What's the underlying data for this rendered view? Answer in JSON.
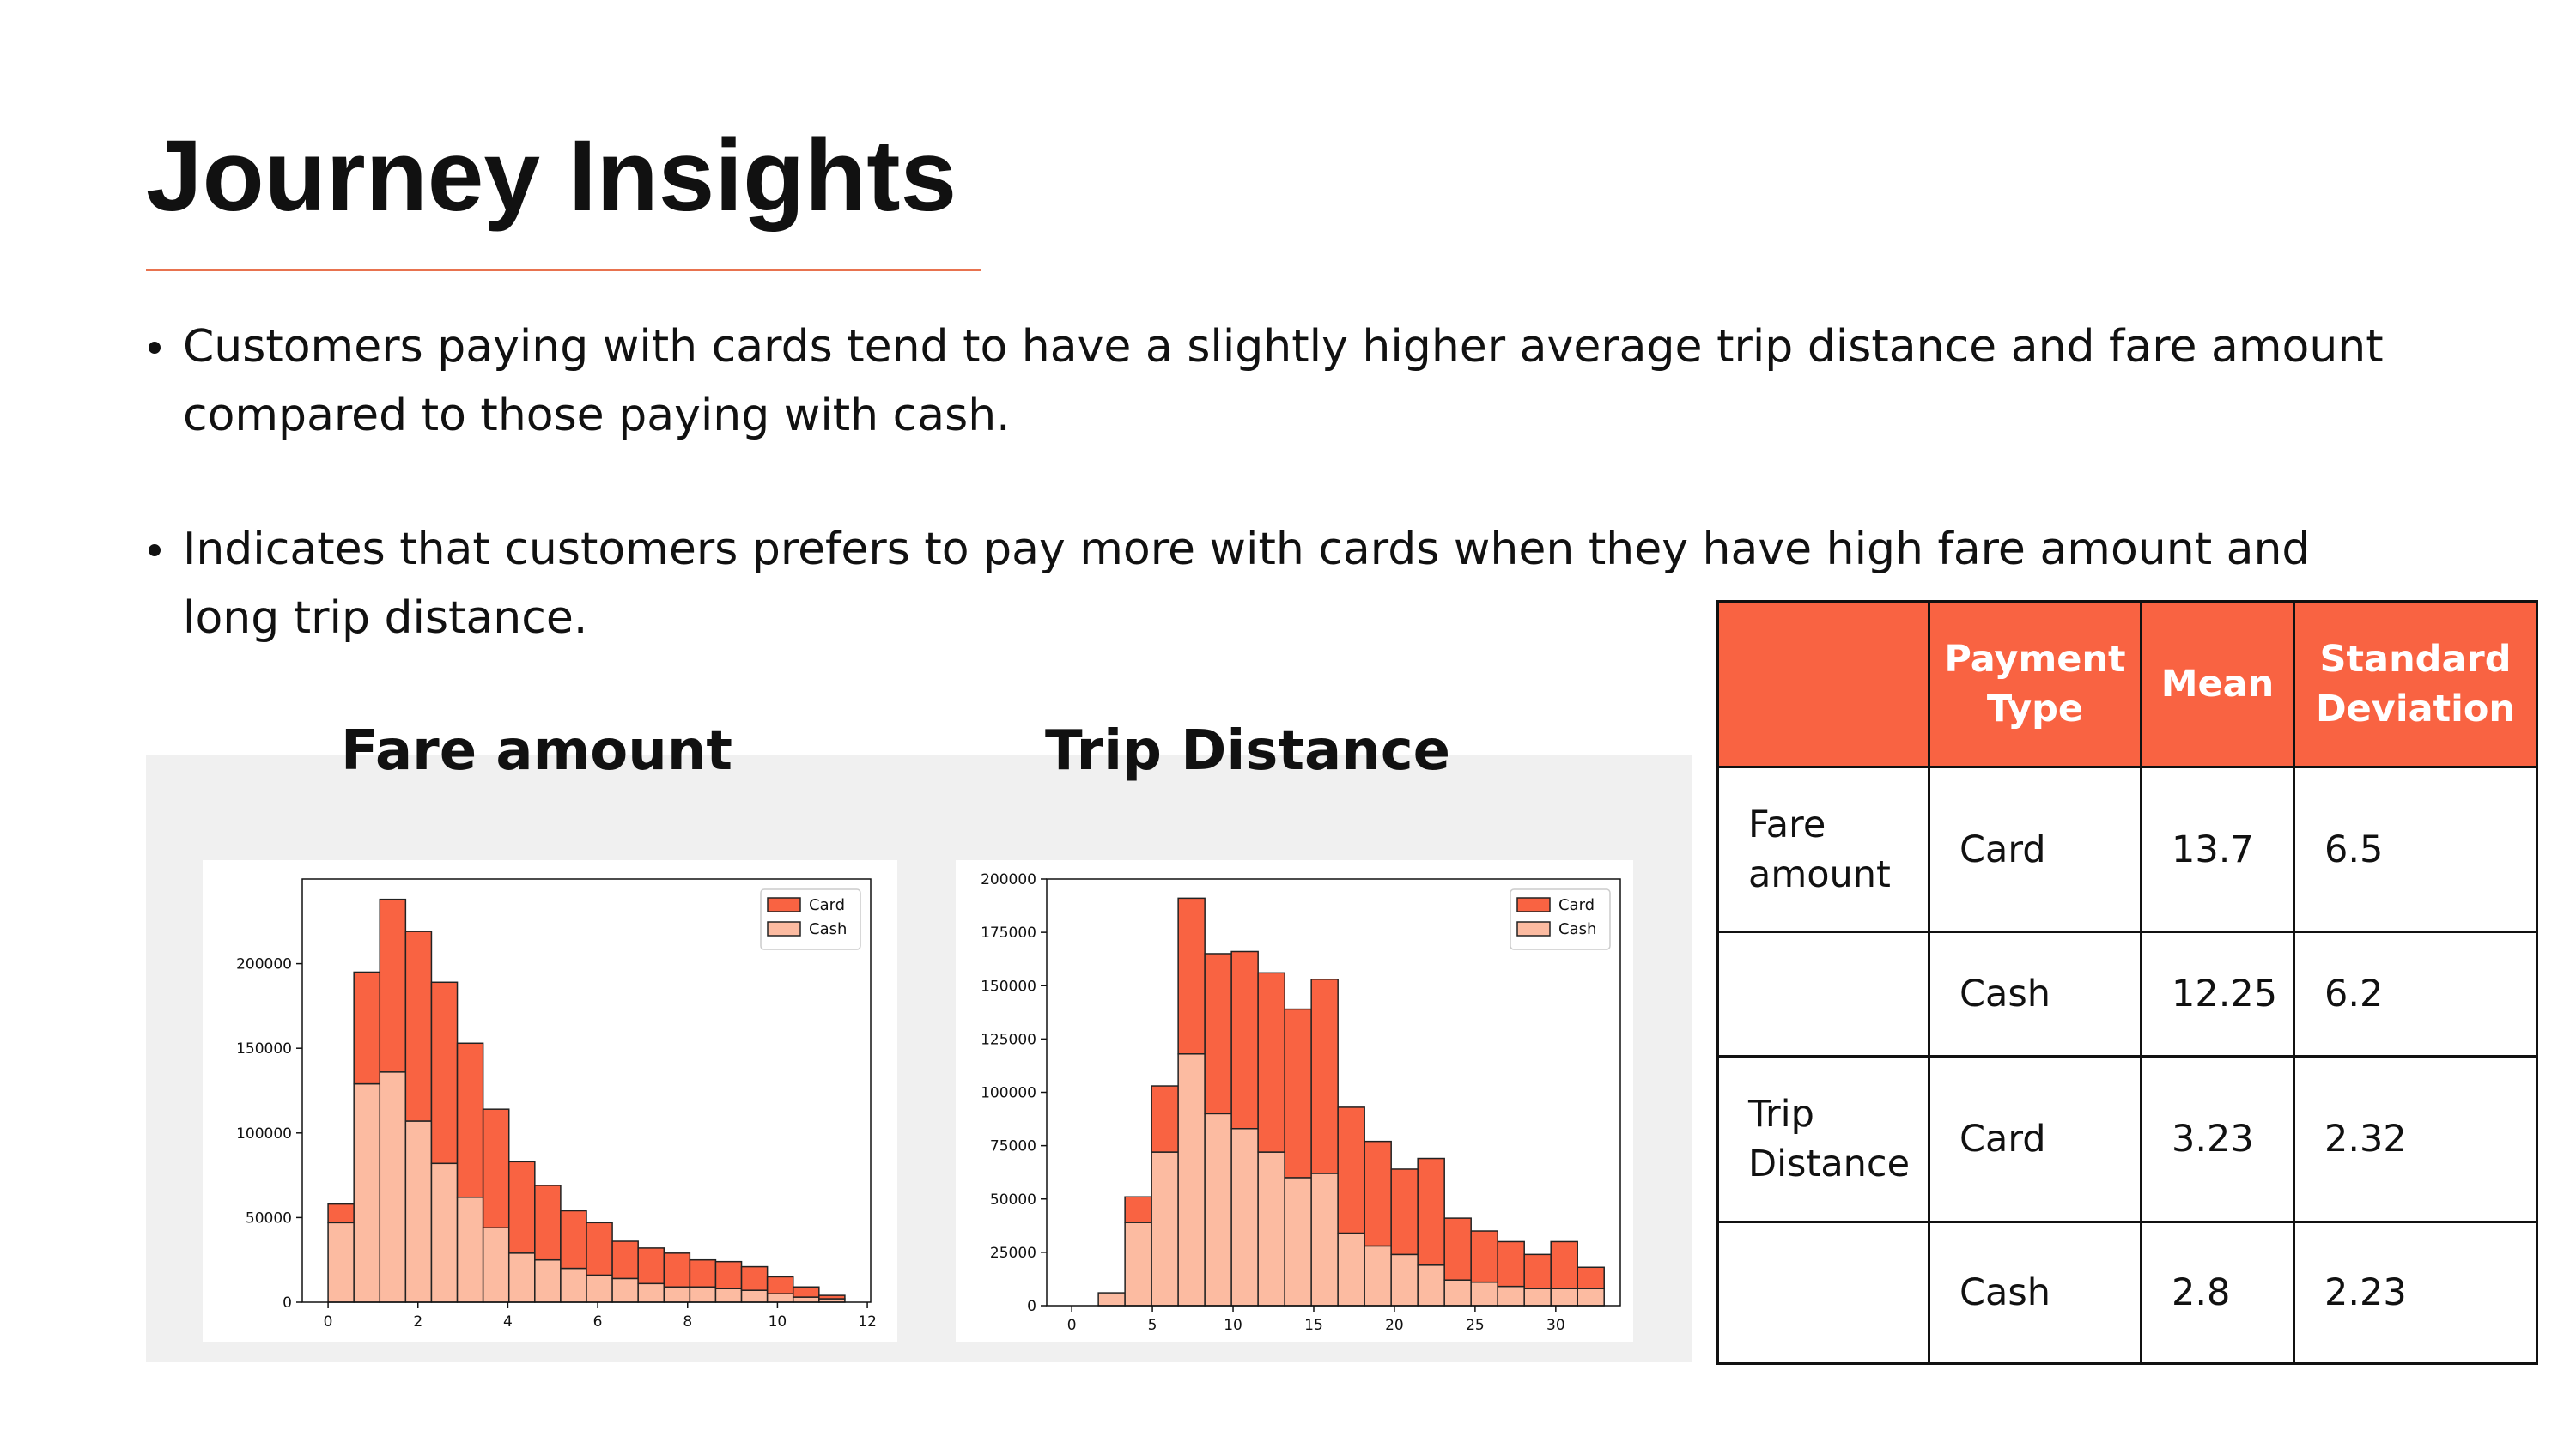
{
  "header": {
    "title": "Journey Insights"
  },
  "bullets": [
    "Customers paying with cards tend to have a slightly higher average trip distance and fare amount compared to those paying with cash.",
    "Indicates that customers prefers to pay more with cards when they have high fare amount and long trip distance."
  ],
  "chart_data": [
    {
      "type": "histogram",
      "title": "Fare amount",
      "stacked": true,
      "legend": "upper right",
      "bins": [
        0,
        0.575,
        1.15,
        1.725,
        2.3,
        2.875,
        3.45,
        4.025,
        4.6,
        5.175,
        5.75,
        6.325,
        6.9,
        7.475,
        8.05,
        8.625,
        9.2,
        9.775,
        10.35,
        10.925,
        11.5
      ],
      "series": [
        {
          "name": "Card",
          "color": "#f96342",
          "values": [
            11000,
            66000,
            102000,
            112000,
            107000,
            91000,
            70000,
            54000,
            44000,
            34000,
            31000,
            22000,
            21000,
            20000,
            16000,
            16000,
            14000,
            10000,
            6000,
            2000
          ]
        },
        {
          "name": "Cash",
          "color": "#fcbba1",
          "values": [
            47000,
            129000,
            136000,
            107000,
            82000,
            62000,
            44000,
            29000,
            25000,
            20000,
            16000,
            14000,
            11000,
            9000,
            9000,
            8000,
            7000,
            5000,
            3000,
            2000
          ]
        }
      ],
      "xlim": [
        -0.575,
        12.075
      ],
      "xticks": [
        0,
        2,
        4,
        6,
        8,
        10,
        12
      ],
      "ylim": [
        0,
        250000
      ],
      "yticks": [
        0,
        50000,
        100000,
        150000,
        200000
      ]
    },
    {
      "type": "histogram",
      "title": "Trip Distance",
      "stacked": true,
      "legend": "upper right",
      "bins": [
        1.65,
        3.3,
        4.95,
        6.6,
        8.25,
        9.9,
        11.55,
        13.2,
        14.85,
        16.5,
        18.15,
        19.8,
        21.45,
        23.1,
        24.75,
        26.4,
        28.05,
        29.7,
        31.35,
        33
      ],
      "series": [
        {
          "name": "Card",
          "color": "#f96342",
          "values": [
            0,
            12000,
            31000,
            73000,
            75000,
            83000,
            84000,
            79000,
            91000,
            59000,
            49000,
            40000,
            50000,
            29000,
            24000,
            21000,
            16000,
            22000,
            10000
          ]
        },
        {
          "name": "Cash",
          "color": "#fcbba1",
          "values": [
            6000,
            39000,
            72000,
            118000,
            90000,
            83000,
            72000,
            60000,
            62000,
            34000,
            28000,
            24000,
            19000,
            12000,
            11000,
            9000,
            8000,
            8000,
            8000
          ]
        }
      ],
      "xlim": [
        -1.55,
        34
      ],
      "xticks": [
        0,
        5,
        10,
        15,
        20,
        25,
        30
      ],
      "ylim": [
        0,
        200000
      ],
      "yticks": [
        0,
        25000,
        50000,
        75000,
        100000,
        125000,
        150000,
        175000,
        200000
      ]
    }
  ],
  "table": {
    "header": [
      "Payment Type",
      "Mean",
      "Standard Deviation"
    ],
    "groups": [
      {
        "label": "Fare amount",
        "rows": [
          [
            "Card",
            13.7,
            6.5
          ],
          [
            "Cash",
            12.25,
            6.2
          ]
        ]
      },
      {
        "label": "Trip Distance",
        "rows": [
          [
            "Card",
            3.23,
            2.32
          ],
          [
            "Cash",
            2.8,
            2.23
          ]
        ]
      }
    ]
  }
}
